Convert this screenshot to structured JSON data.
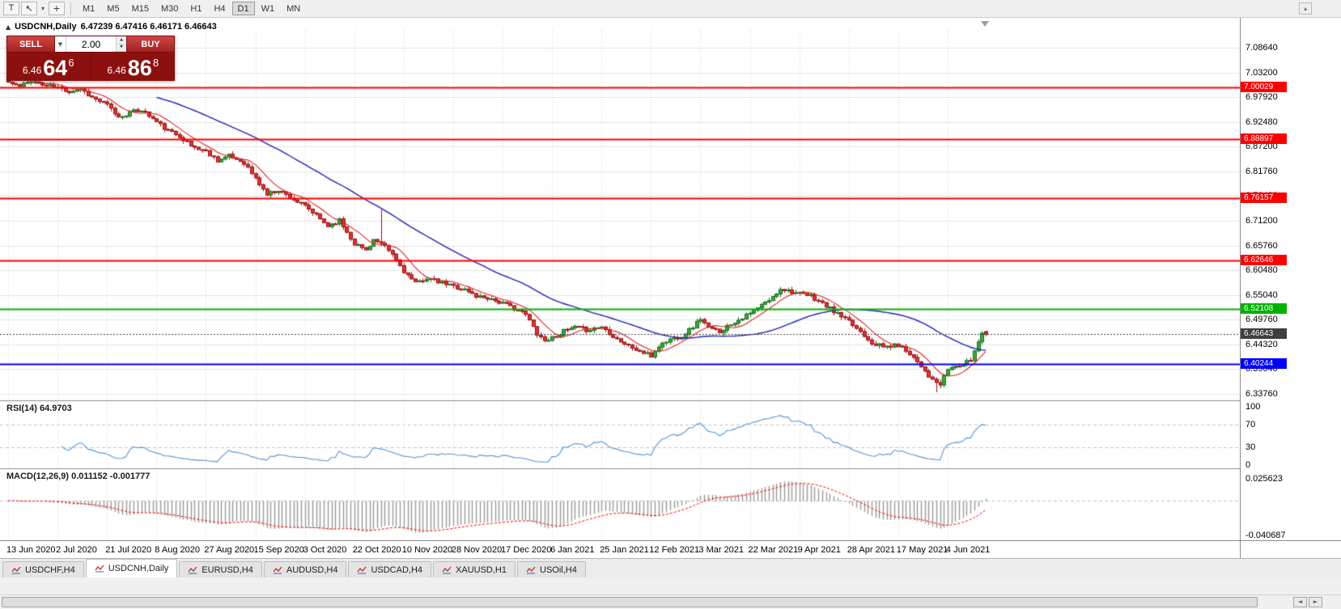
{
  "toolbar": {
    "t_button_label": "T",
    "timeframes": [
      "M1",
      "M5",
      "M15",
      "M30",
      "H1",
      "H4",
      "D1",
      "W1",
      "MN"
    ],
    "active_timeframe": "D1"
  },
  "chart_header": {
    "title": "USDCNH,Daily",
    "ohlc": "6.47239 6.47416 6.46171 6.46643"
  },
  "trade_widget": {
    "sell_label": "SELL",
    "buy_label": "BUY",
    "volume": "2.00",
    "sell_price_small": "6.46",
    "sell_price_big": "64",
    "sell_price_sup": "6",
    "buy_price_small": "6.46",
    "buy_price_big": "86",
    "buy_price_sup": "8"
  },
  "icons": {
    "one_click_toggle": "▲",
    "pointer_tool": "↖",
    "crosshair_tool": "+",
    "tool_caret": "▾",
    "volume_caret": "▼",
    "stepper_up": "▲",
    "stepper_down": "▼",
    "toolbar_overflow": "▴",
    "scroll_left": "◄",
    "scroll_right": "►"
  },
  "tabs": {
    "active_index": 1,
    "items": [
      {
        "label": "USDCHF,H4"
      },
      {
        "label": "USDCNH,Daily"
      },
      {
        "label": "EURUSD,H4"
      },
      {
        "label": "AUDUSD,H4"
      },
      {
        "label": "USDCAD,H4"
      },
      {
        "label": "XAUUSD,H1"
      },
      {
        "label": "USOil,H4"
      }
    ]
  },
  "colors": {
    "candle_up": "#3aa83c",
    "candle_up_border": "#1d6e1f",
    "candle_down": "#e23232",
    "candle_down_border": "#9a1212",
    "grid_h": "#e4e4e4",
    "grid_v": "#d9d9d9",
    "pane_separator": "#8b8b8b",
    "widget_bg": "#8d1010",
    "widget_button": "#c03a3a"
  },
  "chart_data": {
    "type": "candlestick",
    "symbol": "USDCNH",
    "timeframe": "Daily",
    "title": "USDCNH,Daily",
    "last_ohlc": {
      "open": 6.47239,
      "high": 6.47416,
      "low": 6.46171,
      "close": 6.46643
    },
    "y_ticks": [
      "7.08640",
      "7.03200",
      "6.97920",
      "6.92480",
      "6.87200",
      "6.81760",
      "6.76480",
      "6.71200",
      "6.65760",
      "6.60480",
      "6.55040",
      "6.49760",
      "6.44320",
      "6.39040",
      "6.33760"
    ],
    "y_range": {
      "top": 7.0864,
      "bottom": 6.3376
    },
    "x_labels": [
      "13 Jun 2020",
      "2 Jul 2020",
      "21 Jul 2020",
      "8 Aug 2020",
      "27 Aug 2020",
      "15 Sep 2020",
      "3 Oct 2020",
      "22 Oct 2020",
      "10 Nov 2020",
      "28 Nov 2020",
      "17 Dec 2020",
      "6 Jan 2021",
      "25 Jan 2021",
      "12 Feb 2021",
      "3 Mar 2021",
      "22 Mar 2021",
      "9 Apr 2021",
      "28 Apr 2021",
      "17 May 2021",
      "4 Jun 2021"
    ],
    "bars_per_label": 13,
    "total_bars": 258,
    "noise_amplitude": 0.0042,
    "seed": 11,
    "close_anchors": [
      [
        0,
        7.012
      ],
      [
        3,
        7.002
      ],
      [
        6,
        7.016
      ],
      [
        9,
        7.006
      ],
      [
        13,
        7.0
      ],
      [
        16,
        6.992
      ],
      [
        19,
        6.998
      ],
      [
        22,
        6.979
      ],
      [
        26,
        6.962
      ],
      [
        29,
        6.936
      ],
      [
        32,
        6.946
      ],
      [
        35,
        6.952
      ],
      [
        39,
        6.926
      ],
      [
        42,
        6.906
      ],
      [
        45,
        6.896
      ],
      [
        48,
        6.874
      ],
      [
        52,
        6.862
      ],
      [
        55,
        6.843
      ],
      [
        58,
        6.852
      ],
      [
        62,
        6.838
      ],
      [
        65,
        6.803
      ],
      [
        68,
        6.769
      ],
      [
        71,
        6.779
      ],
      [
        74,
        6.763
      ],
      [
        78,
        6.743
      ],
      [
        81,
        6.723
      ],
      [
        84,
        6.701
      ],
      [
        87,
        6.713
      ],
      [
        91,
        6.663
      ],
      [
        94,
        6.649
      ],
      [
        96,
        6.671
      ],
      [
        99,
        6.655
      ],
      [
        101,
        6.639
      ],
      [
        104,
        6.603
      ],
      [
        107,
        6.576
      ],
      [
        110,
        6.589
      ],
      [
        113,
        6.579
      ],
      [
        117,
        6.571
      ],
      [
        120,
        6.563
      ],
      [
        123,
        6.549
      ],
      [
        126,
        6.546
      ],
      [
        130,
        6.533
      ],
      [
        133,
        6.523
      ],
      [
        136,
        6.509
      ],
      [
        139,
        6.469
      ],
      [
        141,
        6.453
      ],
      [
        143,
        6.459
      ],
      [
        146,
        6.473
      ],
      [
        149,
        6.481
      ],
      [
        152,
        6.476
      ],
      [
        156,
        6.483
      ],
      [
        159,
        6.463
      ],
      [
        162,
        6.446
      ],
      [
        165,
        6.433
      ],
      [
        169,
        6.419
      ],
      [
        171,
        6.441
      ],
      [
        174,
        6.456
      ],
      [
        177,
        6.463
      ],
      [
        180,
        6.483
      ],
      [
        182,
        6.501
      ],
      [
        184,
        6.479
      ],
      [
        187,
        6.473
      ],
      [
        190,
        6.489
      ],
      [
        193,
        6.503
      ],
      [
        195,
        6.511
      ],
      [
        198,
        6.529
      ],
      [
        201,
        6.546
      ],
      [
        203,
        6.566
      ],
      [
        206,
        6.559
      ],
      [
        208,
        6.553
      ],
      [
        211,
        6.549
      ],
      [
        214,
        6.533
      ],
      [
        217,
        6.516
      ],
      [
        221,
        6.493
      ],
      [
        224,
        6.473
      ],
      [
        227,
        6.449
      ],
      [
        230,
        6.439
      ],
      [
        234,
        6.443
      ],
      [
        237,
        6.426
      ],
      [
        240,
        6.399
      ],
      [
        243,
        6.366
      ],
      [
        245,
        6.357
      ],
      [
        247,
        6.391
      ],
      [
        249,
        6.397
      ],
      [
        251,
        6.401
      ],
      [
        253,
        6.411
      ],
      [
        254,
        6.431
      ],
      [
        255,
        6.451
      ],
      [
        256,
        6.472
      ],
      [
        257,
        6.46643
      ]
    ],
    "special_bars": [
      {
        "index": 98,
        "high": 6.736
      },
      {
        "index": 244,
        "low": 6.341
      }
    ],
    "hlines": [
      {
        "price": 7.00029,
        "label": "7.00029",
        "color": "#ff0000",
        "width": 2
      },
      {
        "price": 6.88897,
        "label": "6.88897",
        "color": "#ff0000",
        "width": 2
      },
      {
        "price": 6.76157,
        "label": "6.76157",
        "color": "#ff0000",
        "width": 2
      },
      {
        "price": 6.62646,
        "label": "6.62646",
        "color": "#ff0000",
        "width": 2
      },
      {
        "price": 6.52108,
        "label": "6.52108",
        "color": "#00b300",
        "width": 2
      },
      {
        "price": 6.40244,
        "label": "6.40244",
        "color": "#0000ff",
        "width": 2
      }
    ],
    "current_price": {
      "price": 6.46643,
      "value": "6.46643",
      "color": "#3f3f3f"
    },
    "moving_averages": [
      {
        "name": "ma-fast-red",
        "period": 8,
        "color": "#dd2222"
      },
      {
        "name": "ma-slow-blue",
        "period": 40,
        "color": "#2222bb"
      }
    ],
    "rsi": {
      "label": "RSI(14) 64.9703",
      "period": 14,
      "current": 64.9703,
      "axis_ticks": [
        "100",
        "70",
        "30",
        "0"
      ],
      "levels": [
        70,
        30
      ],
      "color": "#5596d2"
    },
    "macd": {
      "label": "MACD(12,26,9) 0.011152 -0.001777",
      "fast": 12,
      "slow": 26,
      "signal": 9,
      "axis_max": 0.025623,
      "axis_min": -0.040687,
      "axis_labels": [
        "0.025623",
        "-0.040687"
      ],
      "hist_color": "#9a9a9a",
      "signal_color": "#ff0000"
    }
  }
}
